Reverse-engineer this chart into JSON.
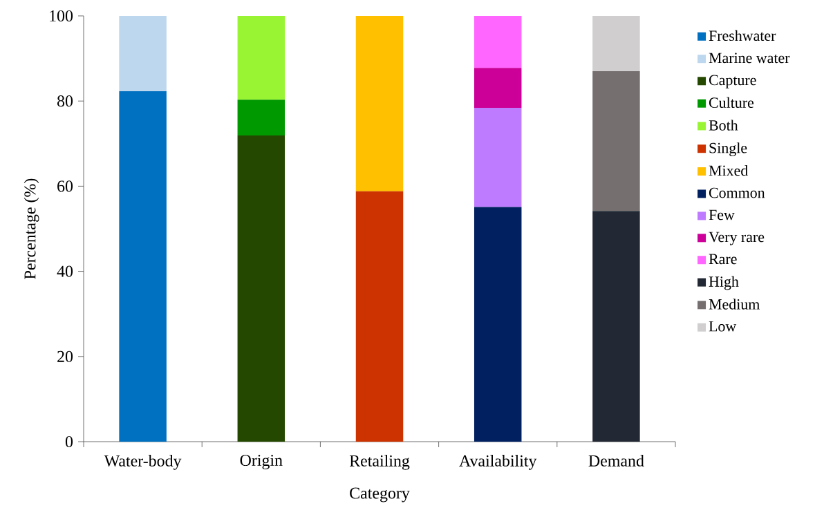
{
  "chart_data": {
    "type": "bar",
    "stacked": true,
    "xlabel": "Category",
    "ylabel": "Percentage (%)",
    "categories": [
      "Water-body",
      "Origin",
      "Retailing",
      "Availability",
      "Demand"
    ],
    "ylim": [
      0,
      100
    ],
    "yticks": [
      0,
      20,
      40,
      60,
      80,
      100
    ],
    "grid": false,
    "legend": "right",
    "series": [
      {
        "name": "Freshwater",
        "color": "#0070c0",
        "values": [
          82.3,
          null,
          null,
          null,
          null
        ]
      },
      {
        "name": "Marine water",
        "color": "#bdd7ee",
        "values": [
          17.7,
          null,
          null,
          null,
          null
        ]
      },
      {
        "name": "Capture",
        "color": "#254800",
        "values": [
          null,
          71.9,
          null,
          null,
          null
        ]
      },
      {
        "name": "Culture",
        "color": "#009900",
        "values": [
          null,
          8.4,
          null,
          null,
          null
        ]
      },
      {
        "name": "Both",
        "color": "#99f533",
        "values": [
          null,
          19.7,
          null,
          null,
          null
        ]
      },
      {
        "name": "Single",
        "color": "#cc3300",
        "values": [
          null,
          null,
          58.8,
          null,
          null
        ]
      },
      {
        "name": "Mixed",
        "color": "#ffc000",
        "values": [
          null,
          null,
          41.2,
          null,
          null
        ]
      },
      {
        "name": "Common",
        "color": "#002060",
        "values": [
          null,
          null,
          null,
          55.1,
          null
        ]
      },
      {
        "name": "Few",
        "color": "#bf7bff",
        "values": [
          null,
          null,
          null,
          23.3,
          null
        ]
      },
      {
        "name": "Very rare",
        "color": "#cc0099",
        "values": [
          null,
          null,
          null,
          9.4,
          null
        ]
      },
      {
        "name": "Rare",
        "color": "#ff66ff",
        "values": [
          null,
          null,
          null,
          12.2,
          null
        ]
      },
      {
        "name": "High",
        "color": "#222834",
        "values": [
          null,
          null,
          null,
          null,
          54.2
        ]
      },
      {
        "name": "Medium",
        "color": "#75706f",
        "values": [
          null,
          null,
          null,
          null,
          32.8
        ]
      },
      {
        "name": "Low",
        "color": "#d0cece",
        "values": [
          null,
          null,
          null,
          null,
          13.0
        ]
      }
    ]
  }
}
